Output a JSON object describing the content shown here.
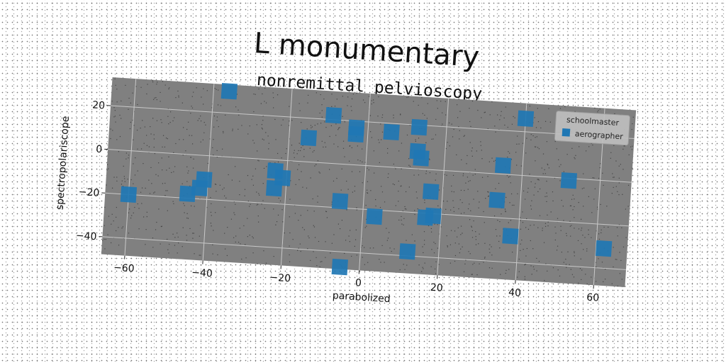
{
  "chart_data": {
    "type": "scatter",
    "title": "L monumentary",
    "subtitle": "nonremittal pelvioscopy",
    "xlabel": "parabolized",
    "ylabel": "spectropolariscope",
    "xlim": [
      -66,
      68
    ],
    "ylim": [
      -48,
      33
    ],
    "xticks": [
      -60,
      -40,
      -20,
      0,
      20,
      40,
      60
    ],
    "yticks": [
      -40,
      -20,
      0,
      20
    ],
    "xtick_labels": [
      "−60",
      "−40",
      "−20",
      "0",
      "20",
      "40",
      "60"
    ],
    "ytick_labels": [
      "−40",
      "−20",
      "0",
      "20"
    ],
    "grid": true,
    "legend": {
      "title": "schoolmaster",
      "placement": "top-right"
    },
    "series": [
      {
        "name": "aerographer",
        "marker": "square",
        "color": "#1f77b4",
        "points": [
          [
            -36,
            30
          ],
          [
            -60,
            -20
          ],
          [
            -45,
            -18
          ],
          [
            -42,
            -15
          ],
          [
            -41,
            -11
          ],
          [
            -23,
            -5
          ],
          [
            -21,
            -8
          ],
          [
            -23,
            -13
          ],
          [
            -15,
            11
          ],
          [
            -9,
            22
          ],
          [
            -6,
            -17
          ],
          [
            -5,
            -47
          ],
          [
            -3,
            17
          ],
          [
            -3,
            14
          ],
          [
            3,
            -23
          ],
          [
            6,
            16
          ],
          [
            13,
            19
          ],
          [
            13,
            8
          ],
          [
            14,
            5
          ],
          [
            12,
            -38
          ],
          [
            17,
            -10
          ],
          [
            16,
            -22
          ],
          [
            18,
            -21
          ],
          [
            35,
            4
          ],
          [
            34,
            -12
          ],
          [
            38,
            -28
          ],
          [
            40,
            26
          ],
          [
            52,
            -1
          ],
          [
            62,
            -31
          ]
        ]
      }
    ]
  },
  "colors": {
    "plot_background": "#808080",
    "grid": "#c8c8c8",
    "marker": "#1f77b4",
    "legend_background": "#c0c0c0"
  }
}
